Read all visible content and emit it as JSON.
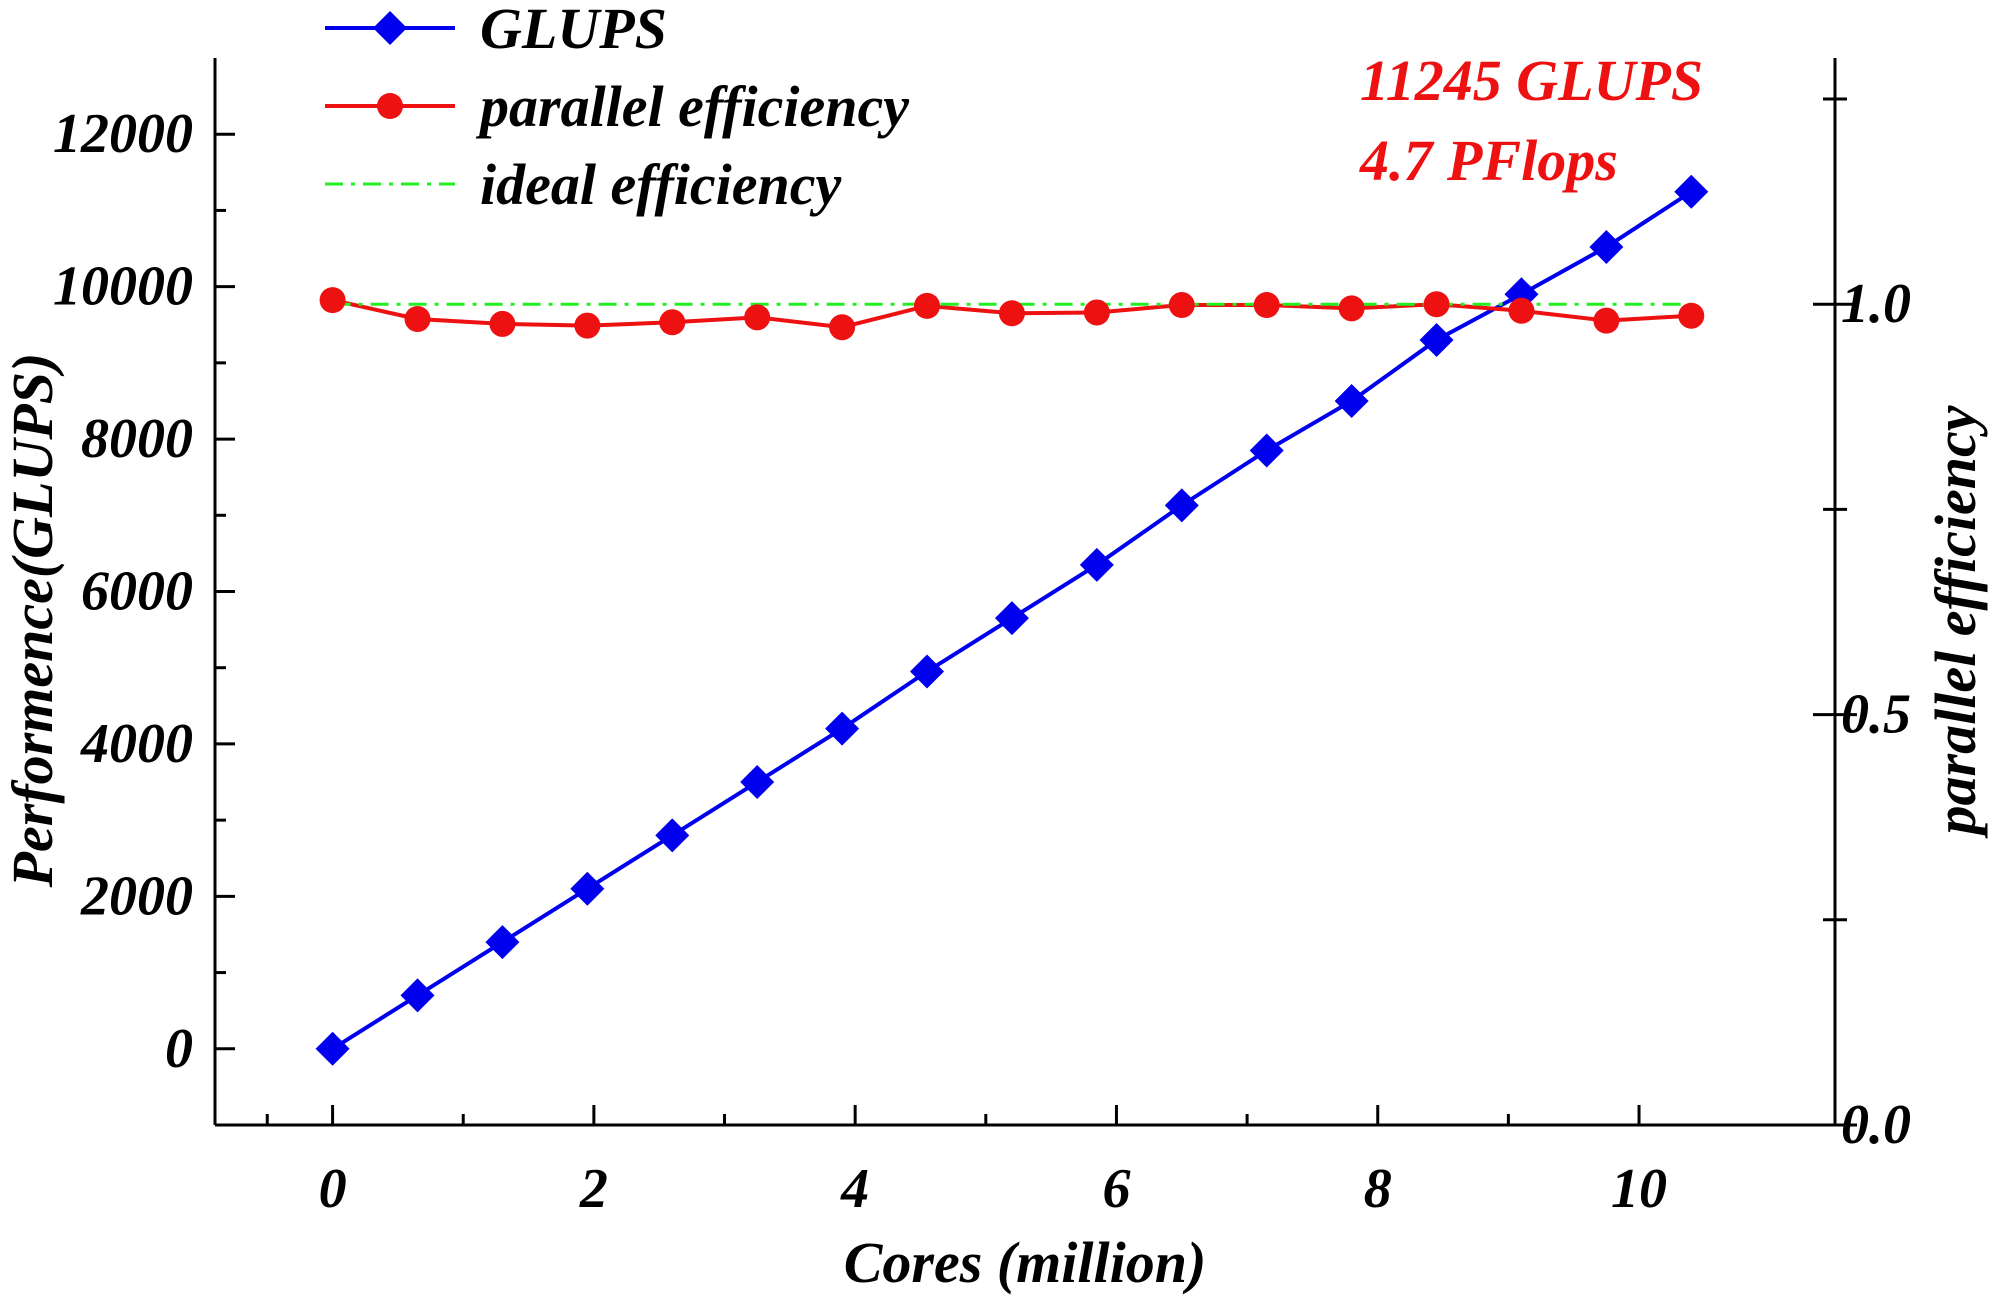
{
  "chart_data": {
    "type": "line",
    "xlabel": "Cores (million)",
    "ylabel": "Performence(GLUPS)",
    "y2label": "parallel efficiency",
    "xlim": [
      -0.9,
      11.5
    ],
    "ylim": [
      -1000,
      13000
    ],
    "y2lim": [
      0.0,
      1.3
    ],
    "xticks": [
      "0",
      "2",
      "4",
      "6",
      "8",
      "10"
    ],
    "yticks": [
      "0",
      "2000",
      "4000",
      "6000",
      "8000",
      "10000",
      "12000"
    ],
    "y2ticks": [
      "0.0",
      "0.5",
      "1.0"
    ],
    "grid": false,
    "legend_position": "top-left",
    "x": [
      0,
      0.65,
      1.3,
      1.95,
      2.6,
      3.25,
      3.9,
      4.55,
      5.2,
      5.85,
      6.5,
      7.15,
      7.8,
      8.45,
      9.1,
      9.75,
      10.4
    ],
    "series": [
      {
        "name": "GLUPS",
        "axis": "left",
        "color": "#0000ee",
        "marker": "diamond",
        "values": [
          0,
          700,
          1400,
          2100,
          2800,
          3500,
          4200,
          4950,
          5650,
          6350,
          7130,
          7850,
          8500,
          9300,
          9900,
          10520,
          11245
        ]
      },
      {
        "name": "parallel efficiency",
        "axis": "right",
        "color": "#ee1111",
        "marker": "circle",
        "values": [
          1.005,
          0.982,
          0.976,
          0.974,
          0.978,
          0.984,
          0.972,
          0.998,
          0.989,
          0.99,
          0.999,
          0.999,
          0.995,
          1.0,
          0.992,
          0.98,
          0.986
        ]
      },
      {
        "name": "ideal efficiency",
        "axis": "right",
        "color": "#22ee22",
        "style": "dash-dot",
        "values": [
          1.0,
          1.0,
          1.0,
          1.0,
          1.0,
          1.0,
          1.0,
          1.0,
          1.0,
          1.0,
          1.0,
          1.0,
          1.0,
          1.0,
          1.0,
          1.0,
          1.0
        ]
      }
    ],
    "annotations": [
      {
        "text": "11245 GLUPS",
        "color": "#ee1111"
      },
      {
        "text": "4.7 PFlops",
        "color": "#ee1111"
      }
    ]
  }
}
